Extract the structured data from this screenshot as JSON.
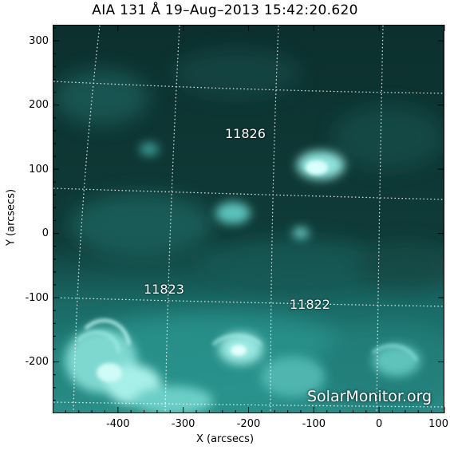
{
  "title": "AIA 131 Å 19–Aug–2013 15:42:20.620",
  "axes": {
    "xlabel": "X (arcsecs)",
    "ylabel": "Y (arcsecs)",
    "xlim": [
      -500,
      100
    ],
    "ylim": [
      -280,
      325
    ],
    "x_ticks": [
      "-400",
      "-300",
      "-200",
      "-100",
      "0",
      "100"
    ],
    "y_ticks": [
      "300",
      "200",
      "100",
      "0",
      "-100",
      "-200"
    ]
  },
  "active_regions": [
    {
      "number": "11826"
    },
    {
      "number": "11823"
    },
    {
      "number": "11822"
    }
  ],
  "watermark": "SolarMonitor.org",
  "colors": {
    "image_dark": "#0b2e2c",
    "image_mid": "#1f8c87",
    "image_bright": "#bff7f2",
    "grid": "#ffffff"
  }
}
